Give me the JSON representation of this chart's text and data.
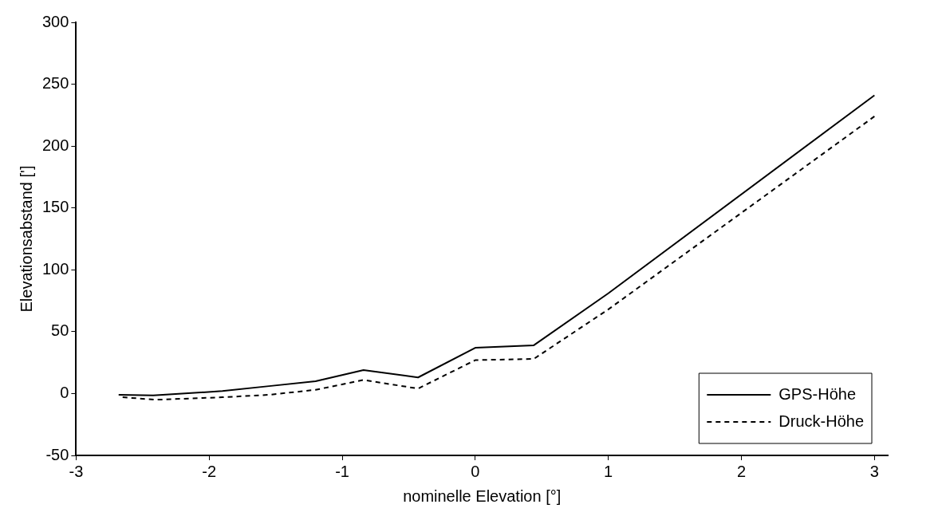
{
  "chart_data": {
    "type": "line",
    "xlabel": "nominelle Elevation [°]",
    "ylabel": "Elevationsabstand [']",
    "xlim": [
      -3,
      3.1
    ],
    "xticks": [
      -3,
      -2,
      -1,
      0,
      1,
      2,
      3
    ],
    "ylim": [
      -50,
      300
    ],
    "yticks": [
      -50,
      0,
      50,
      100,
      150,
      200,
      250,
      300
    ],
    "grid": false,
    "legend": "bottom right",
    "marker": "none",
    "series": [
      {
        "name": "GPS-Höhe",
        "color": "#000000",
        "line_style": "solid",
        "x": [
          -2.68,
          -2.42,
          -1.9,
          -1.55,
          -1.2,
          -0.84,
          -0.43,
          0,
          0.44,
          1,
          3
        ],
        "values": [
          -1,
          -1.5,
          2,
          6,
          10,
          19,
          13,
          37,
          39,
          81,
          241
        ]
      },
      {
        "name": "Druck-Höhe",
        "color": "#000000",
        "line_style": "dashed",
        "x": [
          -2.65,
          -2.4,
          -1.9,
          -1.55,
          -1.2,
          -0.84,
          -0.43,
          0,
          0.44,
          1,
          3
        ],
        "values": [
          -3,
          -5,
          -3,
          -1,
          3,
          11,
          4,
          27,
          28,
          68,
          224
        ]
      }
    ]
  }
}
